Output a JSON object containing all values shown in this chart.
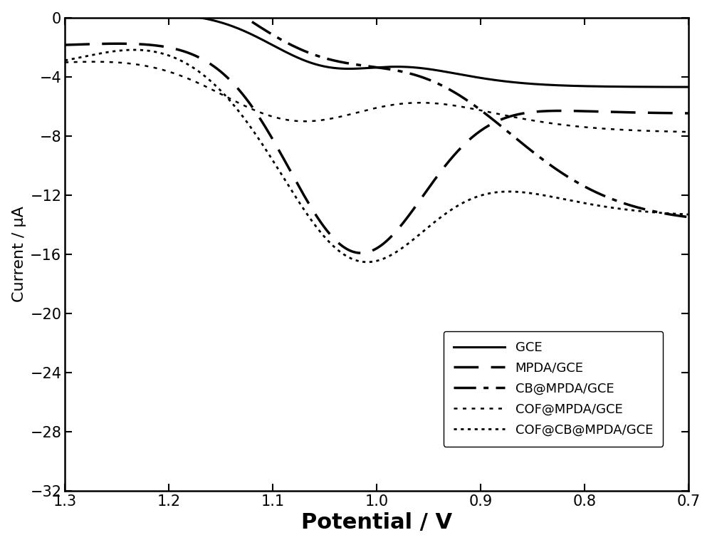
{
  "title": "",
  "xlabel": "Potential / V",
  "ylabel": "Current / μA",
  "xlim": [
    1.3,
    0.7
  ],
  "ylim": [
    -32,
    0
  ],
  "yticks": [
    0,
    -4,
    -8,
    -12,
    -16,
    -20,
    -24,
    -28,
    -32
  ],
  "xticks": [
    1.3,
    1.2,
    1.1,
    1.0,
    0.9,
    0.8,
    0.7
  ],
  "legend_labels": [
    "GCE",
    "MPDA/GCE",
    "CB@MPDA/GCE",
    "COF@MPDA/GCE",
    "COF@CB@MPDA/GCE"
  ],
  "background_color": "#ffffff",
  "line_color": "#000000",
  "xlabel_fontsize": 22,
  "ylabel_fontsize": 16,
  "tick_fontsize": 15,
  "legend_fontsize": 13,
  "lw_gce": 2.2,
  "lw_mpda": 2.5,
  "lw_cb": 2.5,
  "lw_cof_mpda": 1.8,
  "lw_cof_cb": 2.0
}
